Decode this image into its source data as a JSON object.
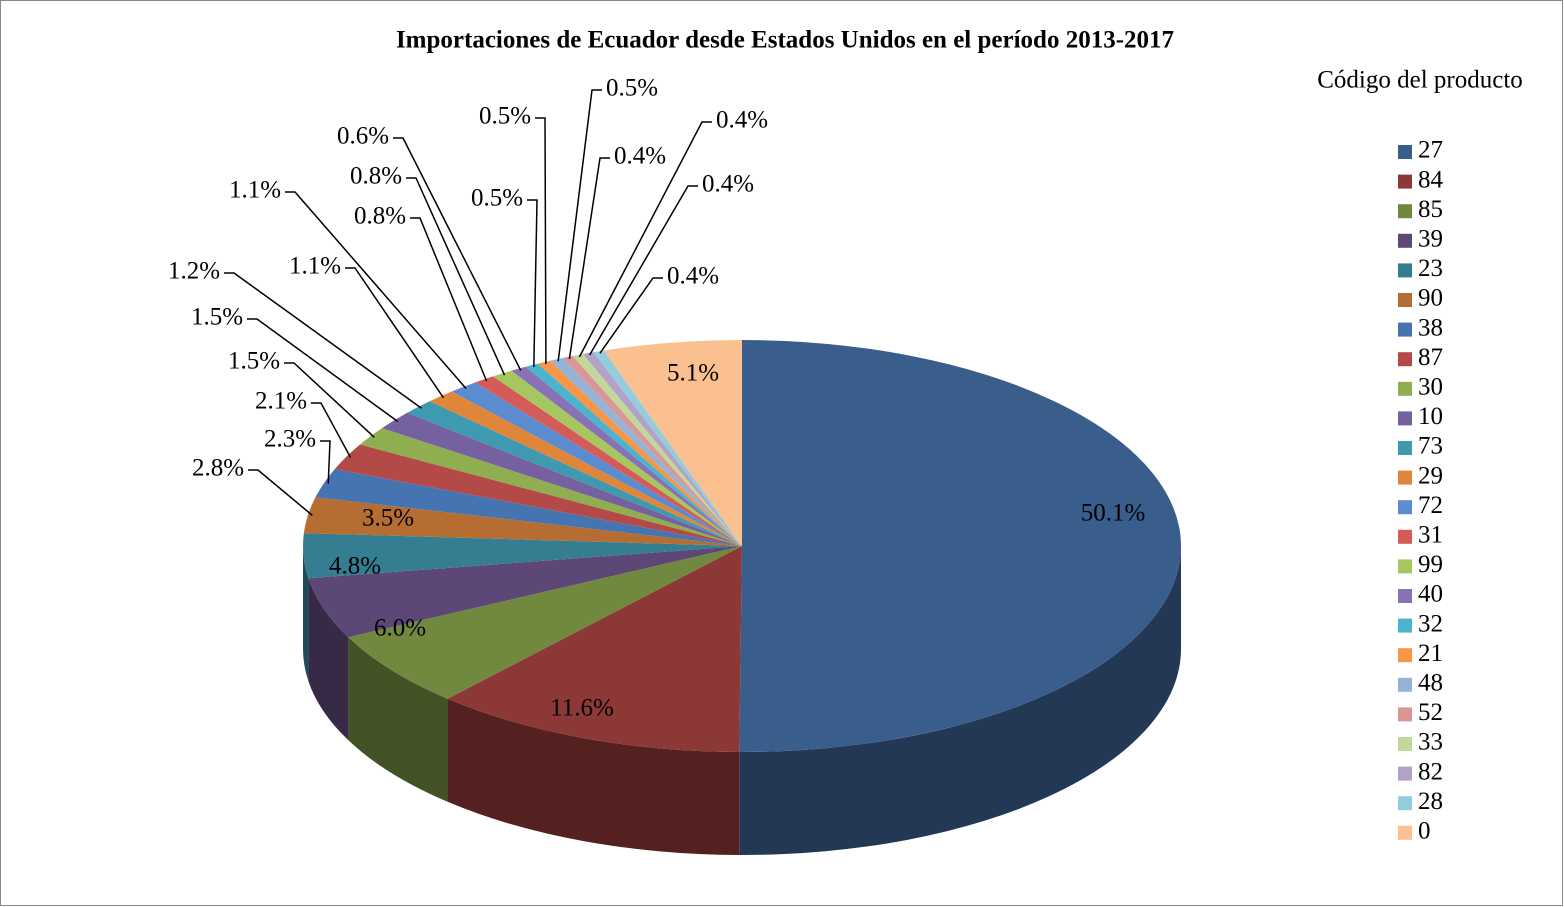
{
  "chart_data": {
    "type": "pie3d",
    "title": "Importaciones de Ecuador desde Estados Unidos en el período 2013-2017",
    "legend_title": "Código del producto",
    "legend": "right",
    "categories": [
      "27",
      "84",
      "85",
      "39",
      "23",
      "90",
      "38",
      "87",
      "30",
      "10",
      "73",
      "29",
      "72",
      "31",
      "99",
      "40",
      "32",
      "21",
      "48",
      "52",
      "33",
      "82",
      "28",
      "0"
    ],
    "values": [
      50.1,
      11.6,
      6.0,
      4.8,
      3.5,
      2.8,
      2.3,
      2.1,
      1.5,
      1.5,
      1.2,
      1.1,
      1.1,
      0.8,
      0.8,
      0.6,
      0.5,
      0.5,
      0.5,
      0.4,
      0.4,
      0.4,
      0.4,
      5.1
    ],
    "value_labels": [
      "50.1%",
      "11.6%",
      "6.0%",
      "4.8%",
      "3.5%",
      "2.8%",
      "2.3%",
      "2.1%",
      "1.5%",
      "1.5%",
      "1.2%",
      "1.1%",
      "1.1%",
      "0.8%",
      "0.8%",
      "0.6%",
      "0.5%",
      "0.5%",
      "0.5%",
      "0.4%",
      "0.4%",
      "0.4%",
      "0.4%",
      "5.1%"
    ],
    "colors": [
      "#3A5E8C",
      "#8C3836",
      "#71893F",
      "#5C4776",
      "#357D91",
      "#B66D31",
      "#4674B0",
      "#B44A48",
      "#8FAE50",
      "#7560A0",
      "#3F9AB0",
      "#E0863A",
      "#5B8CD0",
      "#D55B58",
      "#A6C65F",
      "#8871B4",
      "#4BB3CE",
      "#F79646",
      "#95B3D7",
      "#D99694",
      "#C3D69B",
      "#B2A2C7",
      "#93CDDD",
      "#FAC090"
    ]
  }
}
